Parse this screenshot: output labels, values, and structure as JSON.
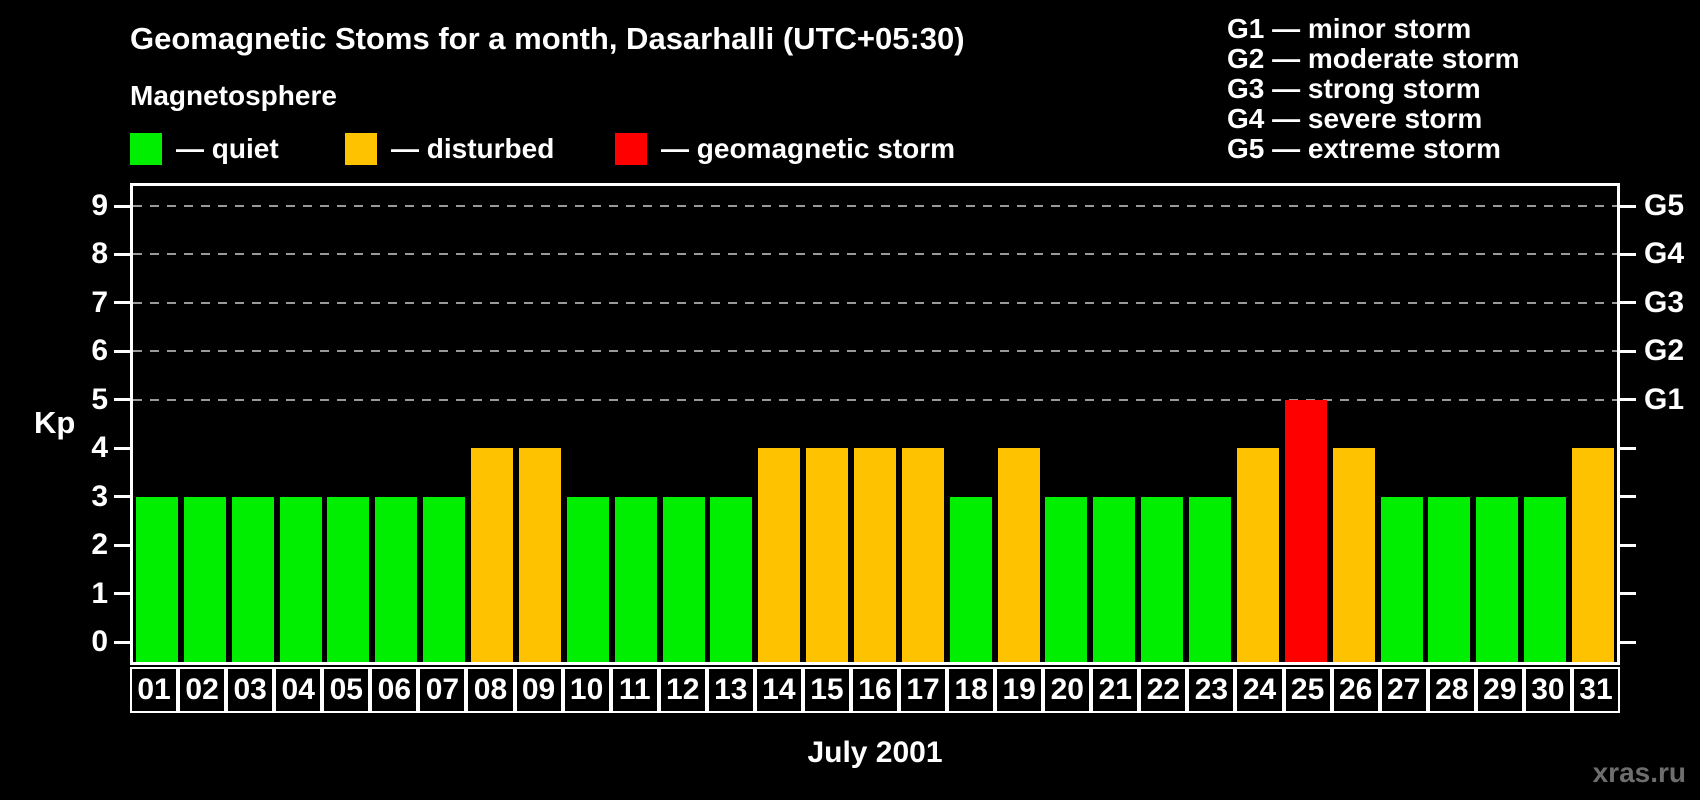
{
  "colors": {
    "background": "#000000",
    "text": "#ffffff",
    "axis": "#ffffff",
    "grid": "#999999",
    "quiet": "#00ee00",
    "disturbed": "#ffc200",
    "storm": "#ff0000",
    "watermark": "#6e6e6e"
  },
  "header": {
    "title": "Geomagnetic Stoms for a month, Dasarhalli (UTC+05:30)"
  },
  "legend": {
    "heading": "Magnetosphere",
    "items": [
      {
        "key": "quiet",
        "label": "— quiet"
      },
      {
        "key": "disturbed",
        "label": "— disturbed"
      },
      {
        "key": "storm",
        "label": "— geomagnetic storm"
      }
    ]
  },
  "g_legend": {
    "items": [
      "G1 — minor storm",
      "G2 — moderate storm",
      "G3 — strong storm",
      "G4 — severe storm",
      "G5 — extreme storm"
    ]
  },
  "watermark": "xras.ru",
  "chart_data": {
    "type": "bar",
    "title": "Geomagnetic Stoms for a month, Dasarhalli (UTC+05:30)",
    "xlabel": "July 2001",
    "ylabel": "Kp",
    "ylim": [
      0,
      9
    ],
    "y_ticks": [
      0,
      1,
      2,
      3,
      4,
      5,
      6,
      7,
      8,
      9
    ],
    "gridlines_at_kp": [
      5,
      6,
      7,
      8,
      9
    ],
    "grid": "dashed-horizontal",
    "legend_position": "top-left",
    "right_axis_ticks": [
      {
        "kp": 5,
        "label": "G1"
      },
      {
        "kp": 6,
        "label": "G2"
      },
      {
        "kp": 7,
        "label": "G3"
      },
      {
        "kp": 8,
        "label": "G4"
      },
      {
        "kp": 9,
        "label": "G5"
      }
    ],
    "categories": [
      "01",
      "02",
      "03",
      "04",
      "05",
      "06",
      "07",
      "08",
      "09",
      "10",
      "11",
      "12",
      "13",
      "14",
      "15",
      "16",
      "17",
      "18",
      "19",
      "20",
      "21",
      "22",
      "23",
      "24",
      "25",
      "26",
      "27",
      "28",
      "29",
      "30",
      "31"
    ],
    "values": [
      3,
      3,
      3,
      3,
      3,
      3,
      3,
      4,
      4,
      3,
      3,
      3,
      3,
      4,
      4,
      4,
      4,
      3,
      4,
      3,
      3,
      3,
      3,
      4,
      5,
      4,
      3,
      3,
      3,
      3,
      4
    ],
    "states": [
      "quiet",
      "quiet",
      "quiet",
      "quiet",
      "quiet",
      "quiet",
      "quiet",
      "disturbed",
      "disturbed",
      "quiet",
      "quiet",
      "quiet",
      "quiet",
      "disturbed",
      "disturbed",
      "disturbed",
      "disturbed",
      "quiet",
      "disturbed",
      "quiet",
      "quiet",
      "quiet",
      "quiet",
      "disturbed",
      "storm",
      "disturbed",
      "quiet",
      "quiet",
      "quiet",
      "quiet",
      "disturbed"
    ]
  }
}
